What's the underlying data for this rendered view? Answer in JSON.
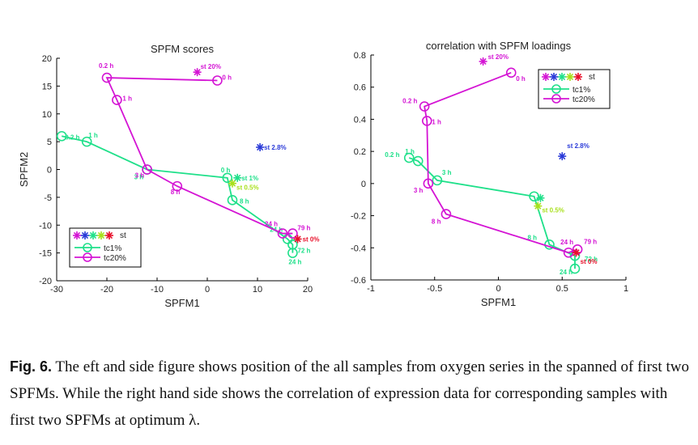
{
  "colors": {
    "green": "#1fe08a",
    "magenta": "#d414d4",
    "blue": "#2a3ad8",
    "yellowgreen": "#a8e01c",
    "red": "#e8102a"
  },
  "caption": {
    "label": "Fig. 6.",
    "text": " The eft and side figure shows position of the all samples from oxygen series in the spanned of first two SPFMs. While the right hand side shows the correlation of expression data for corresponding samples with first two SPFMs at optimum λ."
  },
  "chart_data": [
    {
      "type": "line",
      "title": "SPFM scores",
      "xlabel": "SPFM1",
      "ylabel": "SPFM2",
      "xlim": [
        -30,
        20
      ],
      "ylim": [
        -20,
        20
      ],
      "xticks": [
        -30,
        -20,
        -10,
        0,
        10,
        20
      ],
      "yticks": [
        -20,
        -15,
        -10,
        -5,
        0,
        5,
        10,
        15,
        20
      ],
      "xtick_labels": [
        "-30",
        "-20",
        "-10",
        "0",
        "10",
        "20"
      ],
      "ytick_labels": [
        "-20",
        "-15",
        "-10",
        "-5",
        "0",
        "5",
        "10",
        "15",
        "20"
      ],
      "series": [
        {
          "name": "tc1%",
          "color": "green",
          "x": [
            -29,
            -24,
            -12,
            4,
            5,
            16,
            17,
            17
          ],
          "y": [
            6,
            5,
            0,
            -1.5,
            -5.5,
            -12.5,
            -13.5,
            -15
          ],
          "labels": [
            "0.2 h",
            "1 h",
            "3 h",
            "0 h",
            "8 h",
            "24 h",
            "72 h",
            "24 h"
          ]
        },
        {
          "name": "tc20%",
          "color": "magenta",
          "x": [
            2,
            -20,
            -18,
            -12,
            -6,
            15,
            17
          ],
          "y": [
            16,
            16.5,
            12.5,
            0,
            -3,
            -11.5,
            -11.5
          ],
          "labels": [
            "0 h",
            "0.2 h",
            "1 h",
            "3 h",
            "8 h",
            "24 h",
            "79 h"
          ]
        }
      ],
      "stars": [
        {
          "color": "magenta",
          "x": -2,
          "y": 17.5,
          "label": "st 20%"
        },
        {
          "color": "blue",
          "x": 10.5,
          "y": 4,
          "label": "st 2.8%"
        },
        {
          "color": "green",
          "x": 6,
          "y": -1.5,
          "label": "st 1%"
        },
        {
          "color": "yellowgreen",
          "x": 5,
          "y": -2.5,
          "label": "st 0.5%"
        },
        {
          "color": "red",
          "x": 18,
          "y": -12.5,
          "label": "st 0%"
        }
      ],
      "legend": {
        "position": "bottom-left",
        "stars_label": "st",
        "entries": [
          "tc1%",
          "tc20%"
        ]
      }
    },
    {
      "type": "line",
      "title": "correlation with SPFM loadings",
      "xlabel": "SPFM1",
      "ylabel": "",
      "xlim": [
        -1,
        1
      ],
      "ylim": [
        -0.6,
        0.8
      ],
      "xticks": [
        -1,
        -0.5,
        0,
        0.5,
        1
      ],
      "yticks": [
        -0.6,
        -0.4,
        -0.2,
        0,
        0.2,
        0.4,
        0.6,
        0.8
      ],
      "xtick_labels": [
        "-1",
        "-0.5",
        "0",
        "0.5",
        "1"
      ],
      "ytick_labels": [
        "-0.6",
        "-0.4",
        "-0.2",
        "0",
        "0.2",
        "0.4",
        "0.6",
        "0.8"
      ],
      "series": [
        {
          "name": "tc1%",
          "color": "green",
          "x": [
            -0.7,
            -0.63,
            -0.48,
            0.28,
            0.4,
            0.6,
            0.6
          ],
          "y": [
            0.16,
            0.14,
            0.02,
            -0.08,
            -0.38,
            -0.45,
            -0.53
          ],
          "labels": [
            "0.2 h",
            "1 h",
            "3 h",
            "",
            "8 h",
            "72 h",
            "24 h"
          ]
        },
        {
          "name": "tc20%",
          "color": "magenta",
          "x": [
            0.1,
            -0.58,
            -0.56,
            -0.55,
            -0.41,
            0.55,
            0.62
          ],
          "y": [
            0.69,
            0.48,
            0.39,
            0.0,
            -0.19,
            -0.43,
            -0.41
          ],
          "labels": [
            "0 h",
            "0.2 h",
            "1 h",
            "3 h",
            "8 h",
            "24 h",
            "79 h"
          ]
        }
      ],
      "stars": [
        {
          "color": "magenta",
          "x": -0.12,
          "y": 0.76,
          "label": "st 20%"
        },
        {
          "color": "blue",
          "x": 0.5,
          "y": 0.17,
          "label": "st 2.8%"
        },
        {
          "color": "green",
          "x": 0.33,
          "y": -0.09,
          "label": ""
        },
        {
          "color": "yellowgreen",
          "x": 0.31,
          "y": -0.14,
          "label": "st 0.5%"
        },
        {
          "color": "red",
          "x": 0.61,
          "y": -0.43,
          "label": "st 0%"
        }
      ],
      "legend": {
        "position": "top-right",
        "stars_label": "st",
        "entries": [
          "tc1%",
          "tc20%"
        ]
      }
    }
  ]
}
